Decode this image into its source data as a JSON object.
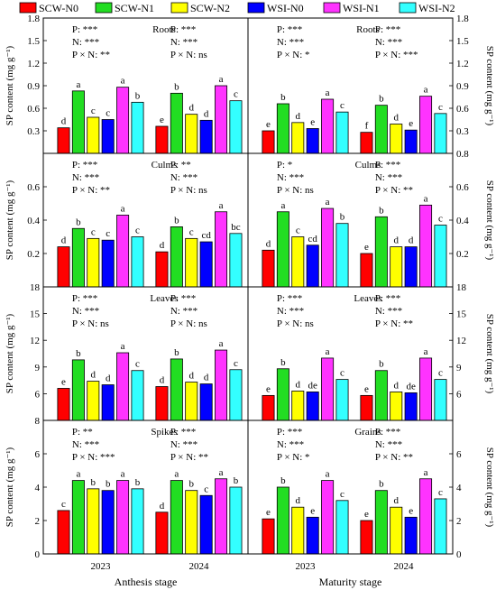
{
  "legend": [
    {
      "name": "SCW-N0",
      "color": "#ff0000"
    },
    {
      "name": "SCW-N1",
      "color": "#22dd22"
    },
    {
      "name": "SCW-N2",
      "color": "#ffff00"
    },
    {
      "name": "WSI-N0",
      "color": "#0000ff"
    },
    {
      "name": "WSI-N1",
      "color": "#ff33ff"
    },
    {
      "name": "WSI-N2",
      "color": "#33ffff"
    }
  ],
  "ylabel": "SP content (mg g⁻¹)",
  "stage_labels": [
    "Anthesis stage",
    "Maturity stage"
  ],
  "year_labels": [
    "2023",
    "2024"
  ],
  "chart_data": [
    {
      "type": "bar",
      "title": "Roots",
      "stage": "Anthesis stage",
      "ylim": [
        0,
        1.8
      ],
      "yticks": [
        "0.3",
        "0.6",
        "0.9",
        "1.2",
        "1.5",
        "1.8"
      ],
      "categories": [
        "2023",
        "2024"
      ],
      "series": [
        {
          "name": "SCW-N0",
          "values": [
            0.34,
            0.36
          ],
          "labels": [
            "d",
            "e"
          ]
        },
        {
          "name": "SCW-N1",
          "values": [
            0.83,
            0.8
          ],
          "labels": [
            "a",
            "b"
          ]
        },
        {
          "name": "SCW-N2",
          "values": [
            0.48,
            0.52
          ],
          "labels": [
            "c",
            "d"
          ]
        },
        {
          "name": "WSI-N0",
          "values": [
            0.45,
            0.44
          ],
          "labels": [
            "c",
            "d"
          ]
        },
        {
          "name": "WSI-N1",
          "values": [
            0.88,
            0.9
          ],
          "labels": [
            "a",
            "a"
          ]
        },
        {
          "name": "WSI-N2",
          "values": [
            0.68,
            0.7
          ],
          "labels": [
            "b",
            "c"
          ]
        }
      ],
      "stats": [
        [
          "P: ***",
          "N: ***",
          "P × N: **"
        ],
        [
          "P: ***",
          "N: ***",
          "P × N: ns"
        ]
      ]
    },
    {
      "type": "bar",
      "title": "Roots",
      "stage": "Maturity stage",
      "ylim": [
        0,
        1.8
      ],
      "yticks": [
        "0.3",
        "0.6",
        "0.9",
        "1.2",
        "1.5",
        "1.8"
      ],
      "categories": [
        "2023",
        "2024"
      ],
      "series": [
        {
          "name": "SCW-N0",
          "values": [
            0.3,
            0.28
          ],
          "labels": [
            "e",
            "f"
          ]
        },
        {
          "name": "SCW-N1",
          "values": [
            0.66,
            0.64
          ],
          "labels": [
            "b",
            "b"
          ]
        },
        {
          "name": "SCW-N2",
          "values": [
            0.41,
            0.39
          ],
          "labels": [
            "d",
            "d"
          ]
        },
        {
          "name": "WSI-N0",
          "values": [
            0.33,
            0.31
          ],
          "labels": [
            "e",
            "e"
          ]
        },
        {
          "name": "WSI-N1",
          "values": [
            0.72,
            0.76
          ],
          "labels": [
            "a",
            "a"
          ]
        },
        {
          "name": "WSI-N2",
          "values": [
            0.55,
            0.53
          ],
          "labels": [
            "c",
            "c"
          ]
        }
      ],
      "stats": [
        [
          "P: ***",
          "N: ***",
          "P × N: *"
        ],
        [
          "P: ***",
          "N: ***",
          "P × N: ***"
        ]
      ]
    },
    {
      "type": "bar",
      "title": "Culms",
      "stage": "Anthesis stage",
      "ylim": [
        0,
        0.8
      ],
      "yticks": [
        "0.2",
        "0.4",
        "0.6"
      ],
      "categories": [
        "2023",
        "2024"
      ],
      "series": [
        {
          "name": "SCW-N0",
          "values": [
            0.24,
            0.21
          ],
          "labels": [
            "d",
            "d"
          ]
        },
        {
          "name": "SCW-N1",
          "values": [
            0.35,
            0.36
          ],
          "labels": [
            "b",
            "b"
          ]
        },
        {
          "name": "SCW-N2",
          "values": [
            0.29,
            0.29
          ],
          "labels": [
            "c",
            "c"
          ]
        },
        {
          "name": "WSI-N0",
          "values": [
            0.28,
            0.27
          ],
          "labels": [
            "c",
            "cd"
          ]
        },
        {
          "name": "WSI-N1",
          "values": [
            0.43,
            0.45
          ],
          "labels": [
            "a",
            "a"
          ]
        },
        {
          "name": "WSI-N2",
          "values": [
            0.3,
            0.32
          ],
          "labels": [
            "c",
            "bc"
          ]
        }
      ],
      "stats": [
        [
          "P: ***",
          "N: ***",
          "P × N: **"
        ],
        [
          "P: **",
          "N: ***",
          "P × N: ns"
        ]
      ]
    },
    {
      "type": "bar",
      "title": "Culms",
      "stage": "Maturity stage",
      "ylim": [
        0,
        0.8
      ],
      "yticks": [
        "0.2",
        "0.4",
        "0.6",
        "0.8"
      ],
      "categories": [
        "2023",
        "2024"
      ],
      "series": [
        {
          "name": "SCW-N0",
          "values": [
            0.22,
            0.2
          ],
          "labels": [
            "d",
            "e"
          ]
        },
        {
          "name": "SCW-N1",
          "values": [
            0.45,
            0.42
          ],
          "labels": [
            "a",
            "b"
          ]
        },
        {
          "name": "SCW-N2",
          "values": [
            0.3,
            0.24
          ],
          "labels": [
            "c",
            "d"
          ]
        },
        {
          "name": "WSI-N0",
          "values": [
            0.25,
            0.24
          ],
          "labels": [
            "cd",
            "d"
          ]
        },
        {
          "name": "WSI-N1",
          "values": [
            0.47,
            0.49
          ],
          "labels": [
            "a",
            "a"
          ]
        },
        {
          "name": "WSI-N2",
          "values": [
            0.38,
            0.37
          ],
          "labels": [
            "b",
            "c"
          ]
        }
      ],
      "stats": [
        [
          "P: *",
          "N: ***",
          "P × N: ns"
        ],
        [
          "P: ***",
          "N: ***",
          "P × N: **"
        ]
      ]
    },
    {
      "type": "bar",
      "title": "Leaves",
      "stage": "Anthesis stage",
      "ylim": [
        3,
        18
      ],
      "yticks": [
        "6",
        "9",
        "12",
        "15",
        "18"
      ],
      "categories": [
        "2023",
        "2024"
      ],
      "series": [
        {
          "name": "SCW-N0",
          "values": [
            6.6,
            6.8
          ],
          "labels": [
            "e",
            "d"
          ]
        },
        {
          "name": "SCW-N1",
          "values": [
            9.8,
            9.9
          ],
          "labels": [
            "b",
            "b"
          ]
        },
        {
          "name": "SCW-N2",
          "values": [
            7.4,
            7.3
          ],
          "labels": [
            "d",
            "d"
          ]
        },
        {
          "name": "WSI-N0",
          "values": [
            7.0,
            7.1
          ],
          "labels": [
            "d",
            "d"
          ]
        },
        {
          "name": "WSI-N1",
          "values": [
            10.6,
            10.9
          ],
          "labels": [
            "a",
            "a"
          ]
        },
        {
          "name": "WSI-N2",
          "values": [
            8.6,
            8.7
          ],
          "labels": [
            "c",
            "c"
          ]
        }
      ],
      "stats": [
        [
          "P: ***",
          "N: ***",
          "P × N: ns"
        ],
        [
          "P: ***",
          "N: ***",
          "P × N: ns"
        ]
      ]
    },
    {
      "type": "bar",
      "title": "Leaves",
      "stage": "Maturity stage",
      "ylim": [
        3,
        18
      ],
      "yticks": [
        "6",
        "9",
        "12",
        "15",
        "18"
      ],
      "categories": [
        "2023",
        "2024"
      ],
      "series": [
        {
          "name": "SCW-N0",
          "values": [
            5.8,
            5.8
          ],
          "labels": [
            "e",
            "e"
          ]
        },
        {
          "name": "SCW-N1",
          "values": [
            8.8,
            8.6
          ],
          "labels": [
            "b",
            "b"
          ]
        },
        {
          "name": "SCW-N2",
          "values": [
            6.3,
            6.2
          ],
          "labels": [
            "d",
            "d"
          ]
        },
        {
          "name": "WSI-N0",
          "values": [
            6.2,
            6.1
          ],
          "labels": [
            "de",
            "de"
          ]
        },
        {
          "name": "WSI-N1",
          "values": [
            10.0,
            10.0
          ],
          "labels": [
            "a",
            "a"
          ]
        },
        {
          "name": "WSI-N2",
          "values": [
            7.6,
            7.6
          ],
          "labels": [
            "c",
            "c"
          ]
        }
      ],
      "stats": [
        [
          "P: ***",
          "N: ***",
          "P × N: ns"
        ],
        [
          "P: ***",
          "N: ***",
          "P × N: **"
        ]
      ]
    },
    {
      "type": "bar",
      "title": "Spikes",
      "stage": "Anthesis stage",
      "ylim": [
        0,
        8
      ],
      "yticks": [
        "0",
        "2",
        "4",
        "6",
        "8"
      ],
      "categories": [
        "2023",
        "2024"
      ],
      "series": [
        {
          "name": "SCW-N0",
          "values": [
            2.6,
            2.5
          ],
          "labels": [
            "c",
            "d"
          ]
        },
        {
          "name": "SCW-N1",
          "values": [
            4.4,
            4.4
          ],
          "labels": [
            "a",
            "a"
          ]
        },
        {
          "name": "SCW-N2",
          "values": [
            3.9,
            3.8
          ],
          "labels": [
            "b",
            "b"
          ]
        },
        {
          "name": "WSI-N0",
          "values": [
            3.8,
            3.5
          ],
          "labels": [
            "b",
            "c"
          ]
        },
        {
          "name": "WSI-N1",
          "values": [
            4.4,
            4.5
          ],
          "labels": [
            "a",
            "a"
          ]
        },
        {
          "name": "WSI-N2",
          "values": [
            3.9,
            4.0
          ],
          "labels": [
            "b",
            "b"
          ]
        }
      ],
      "stats": [
        [
          "P: **",
          "N: ***",
          "P × N: ***"
        ],
        [
          "P: ***",
          "N: ***",
          "P × N: **"
        ]
      ]
    },
    {
      "type": "bar",
      "title": "Grains",
      "stage": "Maturity stage",
      "ylim": [
        0,
        8
      ],
      "yticks": [
        "0",
        "2",
        "4",
        "6"
      ],
      "categories": [
        "2023",
        "2024"
      ],
      "series": [
        {
          "name": "SCW-N0",
          "values": [
            2.1,
            2.0
          ],
          "labels": [
            "e",
            "e"
          ]
        },
        {
          "name": "SCW-N1",
          "values": [
            4.0,
            3.8
          ],
          "labels": [
            "b",
            "b"
          ]
        },
        {
          "name": "SCW-N2",
          "values": [
            2.8,
            2.8
          ],
          "labels": [
            "d",
            "d"
          ]
        },
        {
          "name": "WSI-N0",
          "values": [
            2.2,
            2.2
          ],
          "labels": [
            "e",
            "e"
          ]
        },
        {
          "name": "WSI-N1",
          "values": [
            4.4,
            4.5
          ],
          "labels": [
            "a",
            "a"
          ]
        },
        {
          "name": "WSI-N2",
          "values": [
            3.2,
            3.3
          ],
          "labels": [
            "c",
            "c"
          ]
        }
      ],
      "stats": [
        [
          "P: ***",
          "N: ***",
          "P × N: *"
        ],
        [
          "P: ***",
          "N: ***",
          "P × N: **"
        ]
      ]
    }
  ]
}
